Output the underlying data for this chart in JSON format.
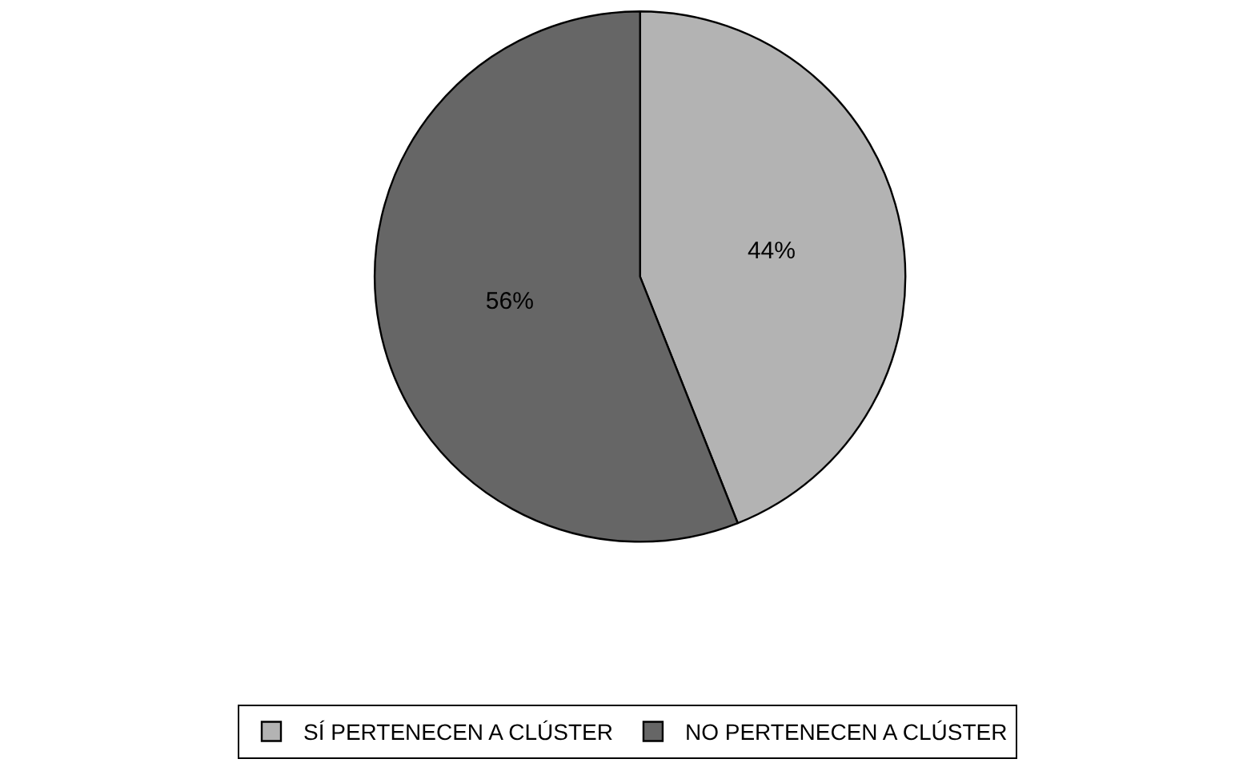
{
  "chart_data": {
    "type": "pie",
    "categories": [
      "SÍ PERTENECEN A CLÚSTER",
      "NO PERTENECEN A CLÚSTER"
    ],
    "values": [
      44,
      56
    ],
    "colors": [
      "#b3b3b3",
      "#666666"
    ],
    "value_labels": [
      "44%",
      "56%"
    ],
    "legend": "bottom"
  }
}
